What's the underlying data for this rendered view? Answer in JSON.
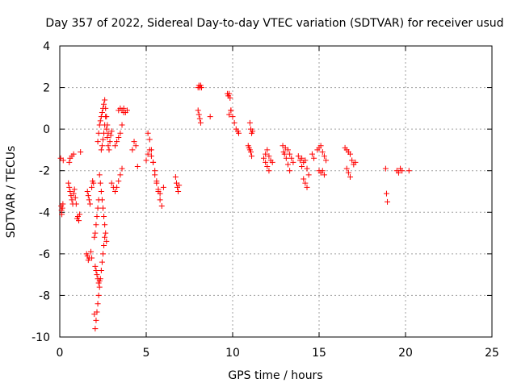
{
  "chart_data": {
    "type": "scatter",
    "title": "Day 357 of 2022, Sidereal Day-to-day VTEC variation (SDTVAR) for receiver usud",
    "xlabel": "GPS time / hours",
    "ylabel": "SDTVAR / TECUs",
    "xlim": [
      0,
      25
    ],
    "ylim": [
      -10,
      4
    ],
    "xticks": [
      0,
      5,
      10,
      15,
      20,
      25
    ],
    "yticks": [
      -10,
      -8,
      -6,
      -4,
      -2,
      0,
      2,
      4
    ],
    "xtick_labels": [
      "0",
      "5",
      "10",
      "15",
      "20",
      "25"
    ],
    "ytick_labels": [
      "-10",
      "-8",
      "-6",
      "-4",
      "-2",
      "0",
      "2",
      "4"
    ],
    "grid": true,
    "marker": "+",
    "series": [
      {
        "name": "SDTVAR",
        "color": "#ff0000",
        "x": [
          0.05,
          0.08,
          0.1,
          0.12,
          0.15,
          0.18,
          0.2,
          0.5,
          0.55,
          0.6,
          0.65,
          0.7,
          0.75,
          0.8,
          0.85,
          0.9,
          0.95,
          0.55,
          0.6,
          0.7,
          0.8,
          1.0,
          1.05,
          1.1,
          1.15,
          1.2,
          1.6,
          1.65,
          1.7,
          1.75,
          1.8,
          1.85,
          1.55,
          1.6,
          1.65,
          1.7,
          1.85,
          1.9,
          1.95,
          2.0,
          2.05,
          2.1,
          2.15,
          2.2,
          2.25,
          2.3,
          2.0,
          2.05,
          2.1,
          2.15,
          2.2,
          2.25,
          2.05,
          2.1,
          2.15,
          2.2,
          2.25,
          2.3,
          2.35,
          2.4,
          2.45,
          2.5,
          2.55,
          2.6,
          2.2,
          2.25,
          2.3,
          2.35,
          2.4,
          2.45,
          2.5,
          2.55,
          2.6,
          2.65,
          2.7,
          2.75,
          2.8,
          2.3,
          2.35,
          2.4,
          2.45,
          2.5,
          2.55,
          2.6,
          2.65,
          2.7,
          2.4,
          2.45,
          2.5,
          2.55,
          2.6,
          2.65,
          2.7,
          2.75,
          2.8,
          2.85,
          2.9,
          2.95,
          3.0,
          3.0,
          3.1,
          3.2,
          3.3,
          3.4,
          3.5,
          3.6,
          3.2,
          3.3,
          3.4,
          3.5,
          3.6,
          3.7,
          3.4,
          3.5,
          3.6,
          3.7,
          3.8,
          3.9,
          4.2,
          4.3,
          4.4,
          4.5,
          5.0,
          5.1,
          5.2,
          5.3,
          5.4,
          5.5,
          5.6,
          5.7,
          5.8,
          5.9,
          6.0,
          5.1,
          5.2,
          5.3,
          5.4,
          5.5,
          5.6,
          5.7,
          5.8,
          6.7,
          6.75,
          6.8,
          6.85,
          6.9,
          8.0,
          8.05,
          8.1,
          8.15,
          8.2,
          8.0,
          8.05,
          8.1,
          8.15,
          8.7,
          9.7,
          9.75,
          9.8,
          9.85,
          9.9,
          9.8,
          9.9,
          10.0,
          10.1,
          10.2,
          10.3,
          10.35,
          10.9,
          10.95,
          11.0,
          11.05,
          11.1,
          11.0,
          11.05,
          11.1,
          11.15,
          11.8,
          11.9,
          12.0,
          12.1,
          12.2,
          12.3,
          11.9,
          12.0,
          12.1,
          12.9,
          12.95,
          13.0,
          13.05,
          13.1,
          13.2,
          13.3,
          13.2,
          13.3,
          13.4,
          13.5,
          13.8,
          13.9,
          14.0,
          14.1,
          14.2,
          14.3,
          14.4,
          14.0,
          14.1,
          14.2,
          14.3,
          14.9,
          15.0,
          15.1,
          15.2,
          15.3,
          15.4,
          15.0,
          15.1,
          15.2,
          15.3,
          14.6,
          14.7,
          16.5,
          16.6,
          16.7,
          16.8,
          16.9,
          17.0,
          17.1,
          16.6,
          16.7,
          16.8,
          18.85,
          18.9,
          18.95,
          19.5,
          19.6,
          19.7,
          19.8,
          20.2
        ],
        "y": [
          -1.4,
          -3.7,
          -3.9,
          -4.1,
          -3.8,
          -3.6,
          -1.5,
          -2.6,
          -2.8,
          -3.0,
          -3.2,
          -3.4,
          -3.6,
          -3.1,
          -2.9,
          -3.3,
          -3.6,
          -1.6,
          -1.4,
          -1.3,
          -1.2,
          -4.3,
          -4.2,
          -4.4,
          -4.1,
          -1.1,
          -3.0,
          -3.2,
          -3.4,
          -3.6,
          -5.9,
          -6.2,
          -6.0,
          -6.1,
          -6.3,
          -6.2,
          -2.8,
          -2.5,
          -2.6,
          -8.9,
          -6.6,
          -6.8,
          -7.0,
          -7.2,
          -7.4,
          -7.3,
          -5.2,
          -5.0,
          -4.6,
          -4.2,
          -3.8,
          -3.4,
          -9.6,
          -9.2,
          -8.8,
          -8.4,
          -8.0,
          -7.6,
          -7.2,
          -6.8,
          -6.4,
          -6.0,
          -5.6,
          -5.2,
          -0.6,
          -0.2,
          0.2,
          0.4,
          0.6,
          0.8,
          1.0,
          1.2,
          1.4,
          1.0,
          0.6,
          0.2,
          -0.2,
          -2.2,
          -2.6,
          -3.0,
          -3.4,
          -3.8,
          -4.2,
          -4.6,
          -5.0,
          -5.4,
          -1.0,
          -0.8,
          -0.5,
          -0.2,
          0.2,
          0.6,
          0.0,
          -0.4,
          -0.8,
          -1.0,
          -0.6,
          -0.3,
          -0.1,
          -2.6,
          -2.8,
          -3.0,
          -2.8,
          -2.5,
          -2.2,
          -1.9,
          -0.8,
          -0.6,
          -0.4,
          -0.2,
          0.2,
          0.8,
          0.9,
          1.0,
          0.9,
          1.0,
          0.8,
          0.9,
          -1.0,
          -0.6,
          -0.8,
          -1.8,
          -1.5,
          -1.2,
          -1.0,
          -1.3,
          -1.6,
          -2.0,
          -2.5,
          -3.0,
          -3.4,
          -3.7,
          -2.8,
          -0.2,
          -0.5,
          -1.0,
          -1.6,
          -2.2,
          -2.6,
          -2.9,
          -3.1,
          -2.3,
          -2.6,
          -2.8,
          -3.0,
          -2.7,
          2.0,
          2.1,
          2.0,
          2.1,
          2.0,
          0.9,
          0.7,
          0.5,
          0.3,
          0.6,
          1.7,
          1.6,
          1.7,
          1.5,
          0.9,
          0.7,
          0.9,
          0.6,
          0.3,
          0.0,
          -0.1,
          -0.2,
          -0.8,
          -0.9,
          -1.0,
          -1.1,
          -1.3,
          0.3,
          0.0,
          -0.2,
          -0.1,
          -1.4,
          -1.6,
          -1.8,
          -2.0,
          -1.5,
          -1.6,
          -1.2,
          -1.0,
          -1.3,
          -0.8,
          -1.1,
          -1.2,
          -0.9,
          -1.4,
          -1.7,
          -2.0,
          -1.0,
          -1.2,
          -1.4,
          -1.6,
          -1.3,
          -1.5,
          -1.8,
          -2.4,
          -2.6,
          -2.8,
          -2.2,
          -1.4,
          -1.6,
          -1.5,
          -1.9,
          -1.0,
          -0.9,
          -0.8,
          -1.1,
          -1.3,
          -1.5,
          -2.0,
          -2.1,
          -2.0,
          -2.2,
          -1.2,
          -1.4,
          -0.9,
          -1.0,
          -1.1,
          -1.2,
          -1.5,
          -1.7,
          -1.6,
          -1.9,
          -2.1,
          -2.3,
          -1.9,
          -3.1,
          -3.5,
          -2.0,
          -2.1,
          -1.9,
          -2.0,
          -2.0
        ]
      }
    ]
  }
}
